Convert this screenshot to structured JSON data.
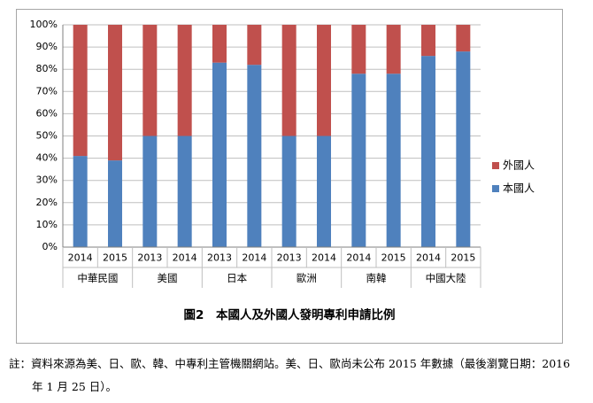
{
  "chart_data": {
    "type": "bar",
    "stacked": true,
    "percent": true,
    "title": "圖2　本國人及外國人發明專利申請比例",
    "xlabel": "",
    "ylabel": "",
    "ylim": [
      0,
      100
    ],
    "yticks": [
      "0%",
      "10%",
      "20%",
      "30%",
      "40%",
      "50%",
      "60%",
      "70%",
      "80%",
      "90%",
      "100%"
    ],
    "groups": [
      {
        "name": "中華民國",
        "years": [
          "2014",
          "2015"
        ]
      },
      {
        "name": "美國",
        "years": [
          "2013",
          "2014"
        ]
      },
      {
        "name": "日本",
        "years": [
          "2013",
          "2014"
        ]
      },
      {
        "name": "歐洲",
        "years": [
          "2013",
          "2014"
        ]
      },
      {
        "name": "南韓",
        "years": [
          "2014",
          "2015"
        ]
      },
      {
        "name": "中國大陸",
        "years": [
          "2014",
          "2015"
        ]
      }
    ],
    "categories": [
      "中華民國 2014",
      "中華民國 2015",
      "美國 2013",
      "美國 2014",
      "日本 2013",
      "日本 2014",
      "歐洲 2013",
      "歐洲 2014",
      "南韓 2014",
      "南韓 2015",
      "中國大陸 2014",
      "中國大陸 2015"
    ],
    "series": [
      {
        "name": "本國人",
        "color": "#4f81bd",
        "values": [
          41,
          39,
          50,
          50,
          83,
          82,
          50,
          50,
          78,
          78,
          86,
          88
        ]
      },
      {
        "name": "外國人",
        "color": "#c0504d",
        "values": [
          59,
          61,
          50,
          50,
          17,
          18,
          50,
          50,
          22,
          22,
          14,
          12
        ]
      }
    ],
    "legend_position": "right",
    "legend_order": [
      "外國人",
      "本國人"
    ],
    "grid": true
  },
  "footnote": {
    "line1": "註：資料來源為美、日、歐、韓、中專利主管機關網站。美、日、歐尚未公布 2015 年數據（最後瀏覽日期：2016",
    "line2": "年 1 月 25 日）。"
  }
}
